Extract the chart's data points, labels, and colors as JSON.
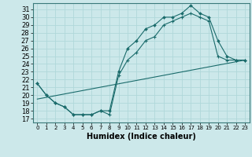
{
  "xlabel": "Humidex (Indice chaleur)",
  "bg_color": "#cce8ea",
  "grid_color": "#b0d8da",
  "line_color": "#1a6b6b",
  "xlim": [
    -0.5,
    23.5
  ],
  "ylim": [
    16.5,
    31.8
  ],
  "yticks": [
    17,
    18,
    19,
    20,
    21,
    22,
    23,
    24,
    25,
    26,
    27,
    28,
    29,
    30,
    31
  ],
  "xticks": [
    0,
    1,
    2,
    3,
    4,
    5,
    6,
    7,
    8,
    9,
    10,
    11,
    12,
    13,
    14,
    15,
    16,
    17,
    18,
    19,
    20,
    21,
    22,
    23
  ],
  "line1_x": [
    0,
    1,
    2,
    3,
    4,
    5,
    6,
    7,
    8,
    9,
    10,
    11,
    12,
    13,
    14,
    15,
    16,
    17,
    18,
    19,
    20,
    21,
    22,
    23
  ],
  "line1_y": [
    21.5,
    20.0,
    19.0,
    18.5,
    17.5,
    17.5,
    17.5,
    18.0,
    18.0,
    23.0,
    26.0,
    27.0,
    28.5,
    29.0,
    30.0,
    30.0,
    30.5,
    31.5,
    30.5,
    30.0,
    27.0,
    25.0,
    24.5,
    24.5
  ],
  "line2_x": [
    0,
    1,
    2,
    3,
    4,
    5,
    6,
    7,
    8,
    9,
    10,
    11,
    12,
    13,
    14,
    15,
    16,
    17,
    18,
    19,
    20,
    21,
    22,
    23
  ],
  "line2_y": [
    21.5,
    20.0,
    19.0,
    18.5,
    17.5,
    17.5,
    17.5,
    18.0,
    17.5,
    22.5,
    24.5,
    25.5,
    27.0,
    27.5,
    29.0,
    29.5,
    30.0,
    30.5,
    30.0,
    29.5,
    25.0,
    24.5,
    24.5,
    24.5
  ],
  "line3_x": [
    0,
    23
  ],
  "line3_y": [
    19.5,
    24.5
  ],
  "xlabel_fontsize": 7,
  "tick_fontsize": 6
}
